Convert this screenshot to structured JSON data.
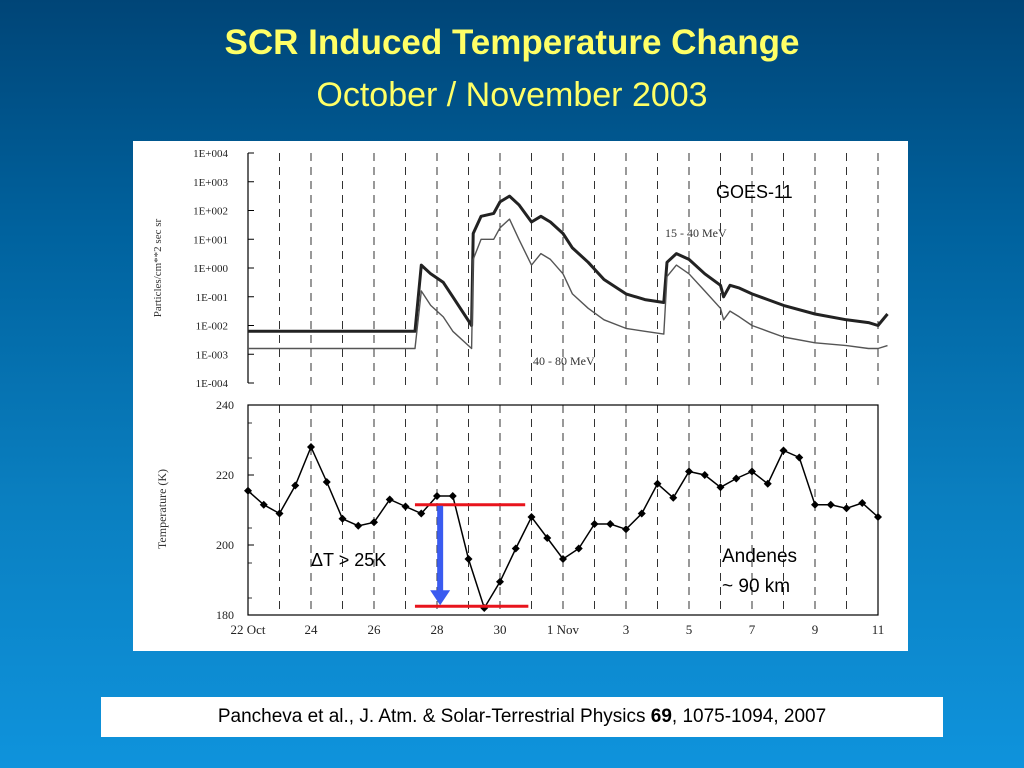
{
  "slide": {
    "title": "SCR Induced Temperature Change",
    "subtitle": "October / November 2003"
  },
  "citation": {
    "authors": "Pancheva et al., J. Atm. & Solar-Terrestrial Physics ",
    "volume": "69",
    "pages": ", 1075-1094, 2007"
  },
  "colors": {
    "title": "#ffff66",
    "marker_red": "#e8141c",
    "arrow_blue": "#3a5bf0"
  },
  "chart_data": [
    {
      "type": "line",
      "log_scale_y": true,
      "ylabel": "Particles/cm**2 sec sr",
      "y_tick_labels": [
        "1E+004",
        "1E+003",
        "1E+002",
        "1E+001",
        "1E+000",
        "1E-001",
        "1E-002",
        "1E-003",
        "1E-004"
      ],
      "ylim": [
        "1E-004",
        "1E+004"
      ],
      "annotation": "GOES-11",
      "series": [
        {
          "name": "15 - 40 MeV",
          "x": [
            0,
            5.3,
            5.5,
            5.8,
            6.2,
            6.5,
            7.1,
            7.15,
            7.4,
            7.8,
            8,
            8.3,
            8.6,
            9,
            9.3,
            9.6,
            10,
            10.3,
            10.8,
            11.3,
            12,
            12.6,
            13.2,
            13.3,
            13.6,
            14,
            14.5,
            15,
            15.1,
            15.3,
            15.6,
            16,
            16.5,
            17,
            18,
            19,
            19.7,
            20,
            20.3
          ],
          "log10_y": [
            -2.2,
            -2.2,
            0.1,
            -0.2,
            -0.5,
            -1.0,
            -2.0,
            1.2,
            1.8,
            1.9,
            2.3,
            2.5,
            2.2,
            1.6,
            1.8,
            1.6,
            1.2,
            0.7,
            0.2,
            -0.4,
            -0.9,
            -1.1,
            -1.2,
            0.2,
            0.5,
            0.3,
            -0.2,
            -0.6,
            -1.0,
            -0.6,
            -0.7,
            -0.9,
            -1.1,
            -1.3,
            -1.6,
            -1.8,
            -1.9,
            -2.0,
            -1.6
          ]
        },
        {
          "name": "40 - 80 MeV",
          "x": [
            0,
            5.3,
            5.5,
            5.8,
            6.2,
            6.5,
            7.1,
            7.15,
            7.4,
            7.8,
            8,
            8.3,
            8.6,
            9,
            9.3,
            9.6,
            10,
            10.3,
            10.8,
            11.3,
            12,
            12.6,
            13.2,
            13.3,
            13.6,
            14,
            14.5,
            15,
            15.1,
            15.3,
            15.6,
            16,
            16.5,
            17,
            18,
            19,
            19.7,
            20,
            20.3
          ],
          "log10_y": [
            -2.8,
            -2.8,
            -0.8,
            -1.3,
            -1.7,
            -2.2,
            -2.8,
            0.3,
            1.0,
            1.0,
            1.4,
            1.7,
            1.0,
            0.1,
            0.5,
            0.3,
            -0.2,
            -0.9,
            -1.4,
            -1.8,
            -2.1,
            -2.2,
            -2.3,
            -0.3,
            0.1,
            -0.2,
            -0.8,
            -1.4,
            -1.8,
            -1.5,
            -1.7,
            -2.0,
            -2.2,
            -2.4,
            -2.6,
            -2.7,
            -2.8,
            -2.8,
            -2.7
          ]
        }
      ]
    },
    {
      "type": "line",
      "ylabel": "Temperature (K)",
      "ylim": [
        180,
        240
      ],
      "y_ticks": [
        180,
        200,
        220,
        240
      ],
      "x_tick_labels": [
        "22 Oct",
        "24",
        "26",
        "28",
        "30",
        "1 Nov",
        "3",
        "5",
        "7",
        "9",
        "11"
      ],
      "x_tick_positions": [
        0,
        2,
        4,
        6,
        8,
        10,
        12,
        14,
        16,
        18,
        20
      ],
      "series": [
        {
          "name": "",
          "x": [
            0,
            0.5,
            1,
            1.5,
            2,
            2.5,
            3,
            3.5,
            4,
            4.5,
            5,
            5.5,
            6,
            6.5,
            7,
            7.5,
            8,
            8.5,
            9,
            9.5,
            10,
            10.5,
            11,
            11.5,
            12,
            12.5,
            13,
            13.5,
            14,
            14.5,
            15,
            15.5,
            16,
            16.5,
            17,
            17.5,
            18,
            18.5,
            19,
            19.5,
            20
          ],
          "values": [
            215.5,
            211.5,
            209,
            217,
            228,
            218,
            207.5,
            205.5,
            206.5,
            213,
            211,
            209,
            214,
            214,
            196,
            182,
            189.5,
            199,
            208,
            202,
            196,
            199,
            206,
            206,
            204.5,
            209,
            217.5,
            213.5,
            221,
            220,
            216.5,
            219,
            221,
            217.5,
            227,
            225,
            211.5,
            211.5,
            210.5,
            212,
            208
          ]
        }
      ],
      "annotations": {
        "delta": "ΔT > 25K",
        "location_line1": "Andenes",
        "location_line2": "~ 90 km"
      },
      "reference_levels": [
        211.5,
        182.5
      ]
    }
  ]
}
